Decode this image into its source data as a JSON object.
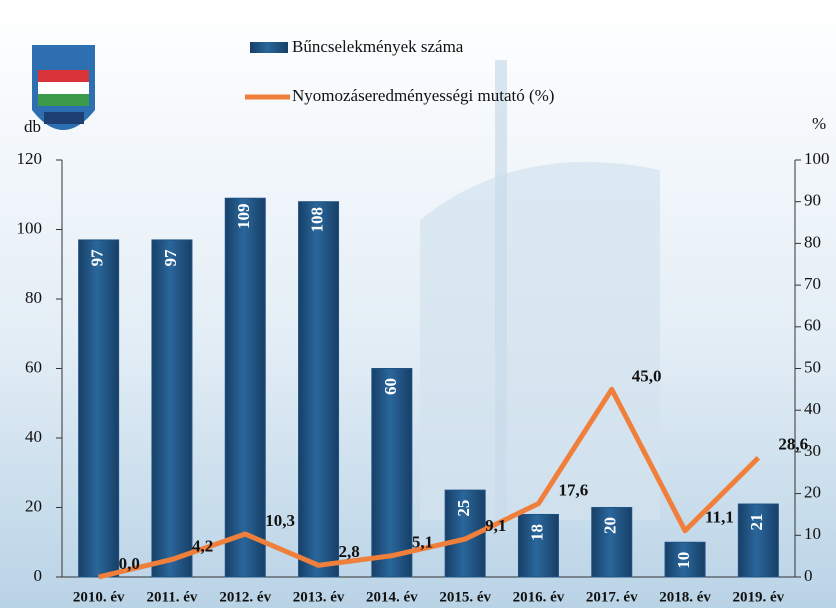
{
  "chart_data": {
    "type": "bar_line",
    "y_label": "db",
    "y2_label": "%",
    "categories": [
      "2010. év",
      "2011. év",
      "2012. év",
      "2013. év",
      "2014. év",
      "2015. év",
      "2016. év",
      "2017. év",
      "2018. év",
      "2019. év"
    ],
    "series": [
      {
        "name": "Bűncselekmények száma",
        "type": "bar",
        "color": "#1f5283",
        "values": [
          97,
          97,
          109,
          108,
          60,
          25,
          18,
          20,
          10,
          21
        ]
      },
      {
        "name": "Nyomozáseredményességi mutató (%)",
        "type": "line",
        "axis": "y2",
        "color": "#f07f3c",
        "values": [
          0,
          4.2,
          10.3,
          2.8,
          5.1,
          9.1,
          17.6,
          45.0,
          11.1,
          28.6
        ],
        "value_labels": [
          "0,0",
          "4,2",
          "10,3",
          "2,8",
          "5,1",
          "9,1",
          "17,6",
          "45,0",
          "11,1",
          "28,6"
        ]
      }
    ],
    "ylim": [
      0,
      120
    ],
    "yticks": [
      0,
      20,
      40,
      60,
      80,
      100,
      120
    ],
    "y2lim": [
      0,
      100
    ],
    "y2ticks": [
      0,
      10,
      20,
      30,
      40,
      50,
      60,
      70,
      80,
      90,
      100
    ]
  }
}
